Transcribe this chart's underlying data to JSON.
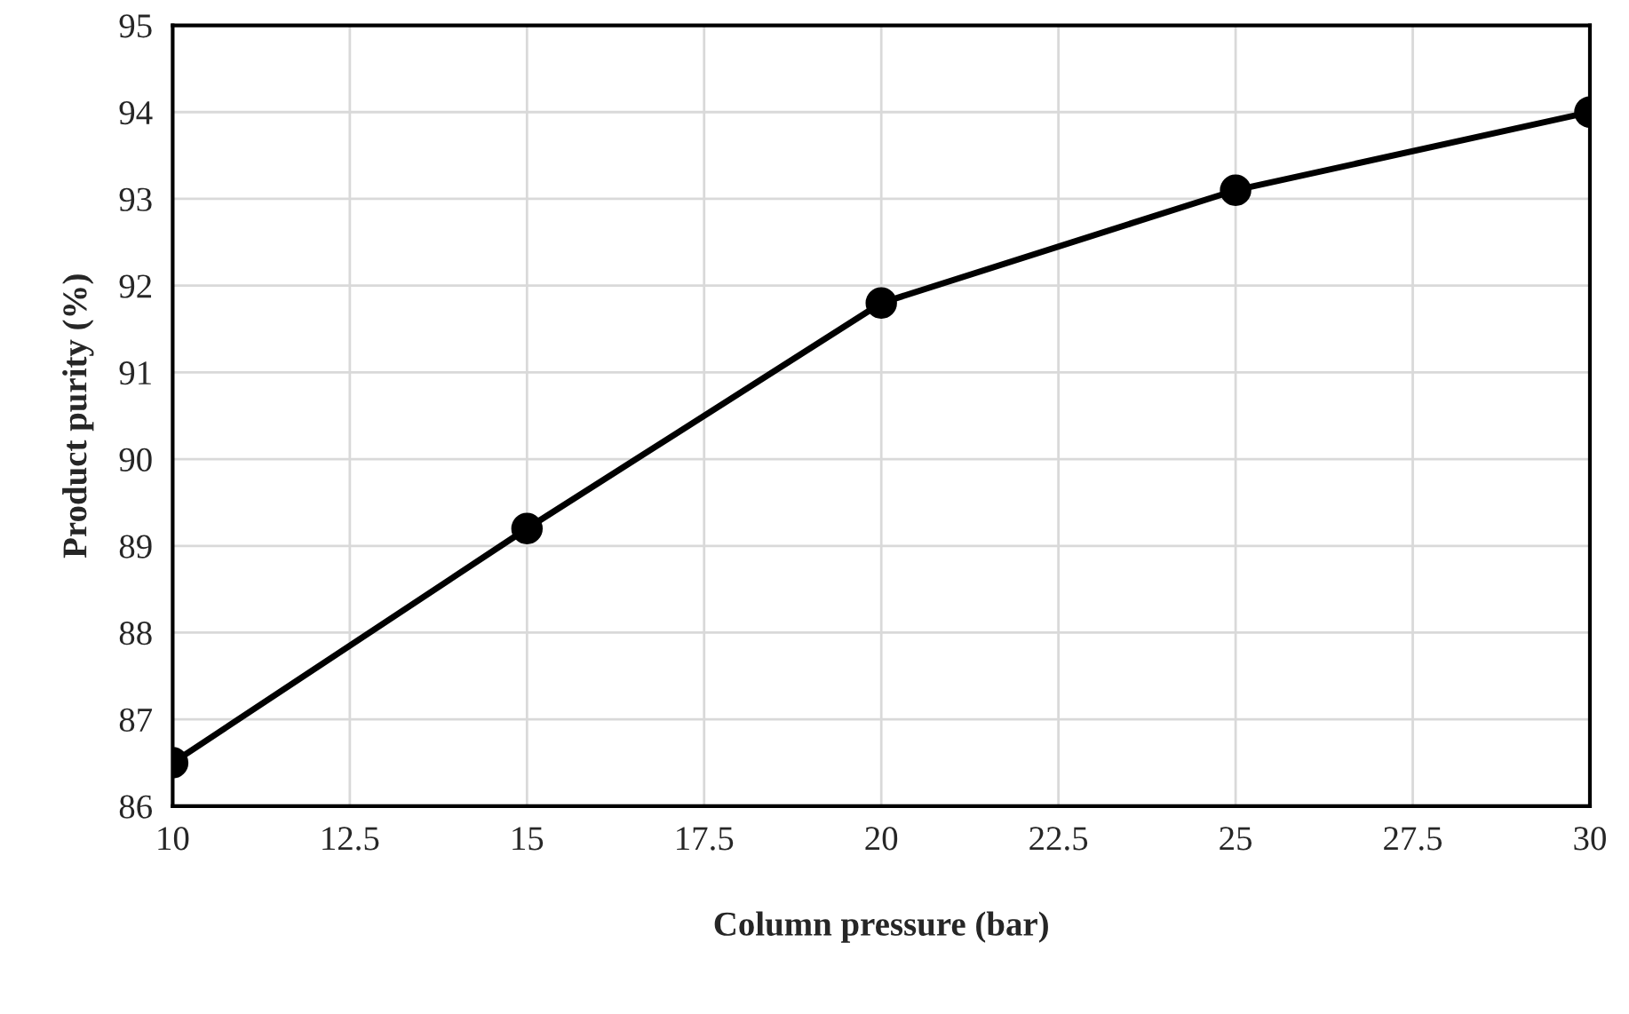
{
  "chart_data": {
    "type": "line",
    "xlabel": "Column pressure (bar)",
    "ylabel": "Product purity (%)",
    "x": [
      10,
      15,
      20,
      25,
      30
    ],
    "series": [
      {
        "color": "#000000",
        "values": [
          86.5,
          89.2,
          91.8,
          93.1,
          94.0
        ]
      }
    ],
    "xlim": [
      10,
      30
    ],
    "xticks": [
      10,
      12.5,
      15,
      17.5,
      20,
      22.5,
      25,
      27.5,
      30
    ],
    "ylim": [
      86,
      95
    ],
    "yticks": [
      86,
      87,
      88,
      89,
      90,
      91,
      92,
      93,
      94,
      95
    ],
    "grid": true,
    "marker": "circle",
    "line_style": "solid",
    "legend": false
  }
}
